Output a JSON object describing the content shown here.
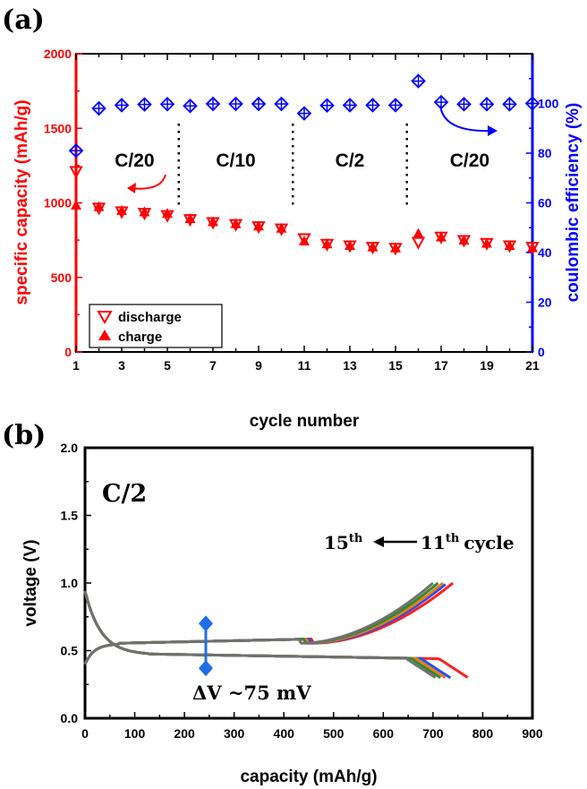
{
  "chart_data": [
    {
      "id": "a",
      "panel_label": "(a)",
      "type": "scatter",
      "xlabel": "cycle number",
      "ylabel_left": "specific capacity (mAh/g)",
      "ylabel_right": "coulombic efficiency (%)",
      "xlim": [
        1,
        21
      ],
      "ylim_left": [
        0,
        2000
      ],
      "ylim_right": [
        0,
        120
      ],
      "xticks": [
        1,
        3,
        5,
        7,
        9,
        11,
        13,
        15,
        17,
        19,
        21
      ],
      "yticks_left": [
        0,
        500,
        1000,
        1500,
        2000
      ],
      "yticks_right": [
        0,
        20,
        40,
        60,
        80,
        100
      ],
      "x": [
        1,
        2,
        3,
        4,
        5,
        6,
        7,
        8,
        9,
        10,
        11,
        12,
        13,
        14,
        15,
        16,
        17,
        18,
        19,
        20,
        21
      ],
      "series": [
        {
          "name": "discharge",
          "axis": "left",
          "color": "#ff0000",
          "marker": "open-down-triangle",
          "values": [
            1210,
            965,
            940,
            930,
            915,
            888,
            868,
            855,
            840,
            825,
            760,
            722,
            712,
            702,
            695,
            735,
            770,
            748,
            728,
            712,
            702
          ]
        },
        {
          "name": "charge",
          "axis": "left",
          "color": "#ff0000",
          "marker": "filled-up-triangle",
          "values": [
            985,
            975,
            950,
            940,
            930,
            895,
            875,
            860,
            845,
            830,
            745,
            725,
            715,
            705,
            698,
            795,
            772,
            750,
            730,
            715,
            700
          ]
        },
        {
          "name": "coulombic efficiency",
          "axis": "right",
          "color": "#0000ff",
          "marker": "open-diamond-cross",
          "values": [
            81,
            98,
            99.3,
            99.6,
            99.7,
            99,
            99.8,
            99.8,
            99.8,
            99.8,
            96,
            99.2,
            99.3,
            99.3,
            99.3,
            109,
            100.5,
            99.7,
            99.7,
            99.7,
            100
          ]
        }
      ],
      "rate_labels": [
        "C/20",
        "C/10",
        "C/2",
        "C/20"
      ],
      "rate_boundaries": [
        5.5,
        10.5,
        15.5
      ],
      "legend": [
        "discharge",
        "charge"
      ],
      "legend_position": "bottom-left"
    },
    {
      "id": "b",
      "panel_label": "(b)",
      "type": "line",
      "xlabel": "capacity (mAh/g)",
      "ylabel": "voltage (V)",
      "xlim": [
        0,
        900
      ],
      "ylim": [
        0.0,
        2.0
      ],
      "xticks": [
        0,
        100,
        200,
        300,
        400,
        500,
        600,
        700,
        800,
        900
      ],
      "yticks": [
        0.0,
        0.5,
        1.0,
        1.5,
        2.0
      ],
      "rate_label": "C/2",
      "annotation_cycle": {
        "start_base": "15",
        "start_sup": "th",
        "end_base": "11",
        "end_sup": "th",
        "suffix": "cycle"
      },
      "annotation_dv": "ΔV ~75 mV",
      "dv_marker": {
        "x": 243,
        "y_low": 0.37,
        "y_high": 0.7,
        "color": "#1e6ee6"
      },
      "series": [
        {
          "name": "11th",
          "color": "#ff2020",
          "charge_end": 740,
          "discharge_end": 772
        },
        {
          "name": "12th",
          "color": "#2050ff",
          "charge_end": 728,
          "discharge_end": 735
        },
        {
          "name": "13th",
          "color": "#f07a10",
          "charge_end": 720,
          "discharge_end": 725
        },
        {
          "name": "14th",
          "color": "#2e8b2e",
          "charge_end": 710,
          "discharge_end": 715
        },
        {
          "name": "15th",
          "color": "#707070",
          "charge_end": 700,
          "discharge_end": 705
        }
      ]
    }
  ]
}
